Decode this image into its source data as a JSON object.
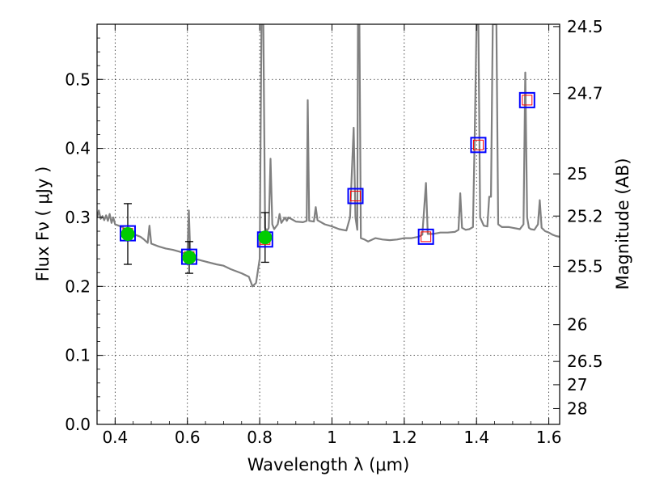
{
  "chart_data": {
    "type": "scatter",
    "title": "",
    "xlabel": "Wavelength  λ (μm)",
    "ylabel": "Flux  Fν  ( μJy )",
    "ylabel_right": "Magnitude (AB)",
    "xlim": [
      0.35,
      1.63
    ],
    "ylim": [
      0.0,
      0.58
    ],
    "grid": true,
    "x_ticks": [
      0.4,
      0.6,
      0.8,
      1.0,
      1.2,
      1.4,
      1.6
    ],
    "x_tick_labels": [
      "0.4",
      "0.6",
      "0.8",
      "1",
      "1.2",
      "1.4",
      "1.6"
    ],
    "y_ticks": [
      0.0,
      0.1,
      0.2,
      0.3,
      0.4,
      0.5
    ],
    "y_tick_labels": [
      "0.0",
      "0.1",
      "0.2",
      "0.3",
      "0.4",
      "0.5"
    ],
    "right_ticks": [
      {
        "flux": 0.5766,
        "label": "24.5"
      },
      {
        "flux": 0.4796,
        "label": "24.7"
      },
      {
        "flux": 0.3631,
        "label": "25"
      },
      {
        "flux": 0.302,
        "label": "25.2"
      },
      {
        "flux": 0.2291,
        "label": "25.5"
      },
      {
        "flux": 0.1445,
        "label": "26"
      },
      {
        "flux": 0.0912,
        "label": "26.5"
      },
      {
        "flux": 0.0575,
        "label": "27"
      },
      {
        "flux": 0.0229,
        "label": "28"
      }
    ],
    "series": [
      {
        "kind": "line",
        "color": "#808080",
        "points": [
          [
            0.35,
            0.3
          ],
          [
            0.355,
            0.31
          ],
          [
            0.36,
            0.298
          ],
          [
            0.365,
            0.302
          ],
          [
            0.37,
            0.296
          ],
          [
            0.375,
            0.303
          ],
          [
            0.38,
            0.295
          ],
          [
            0.385,
            0.305
          ],
          [
            0.39,
            0.292
          ],
          [
            0.395,
            0.3
          ],
          [
            0.4,
            0.29
          ],
          [
            0.41,
            0.288
          ],
          [
            0.42,
            0.286
          ],
          [
            0.43,
            0.282
          ],
          [
            0.44,
            0.279
          ],
          [
            0.45,
            0.276
          ],
          [
            0.46,
            0.274
          ],
          [
            0.47,
            0.272
          ],
          [
            0.48,
            0.268
          ],
          [
            0.49,
            0.263
          ],
          [
            0.495,
            0.288
          ],
          [
            0.5,
            0.262
          ],
          [
            0.52,
            0.258
          ],
          [
            0.54,
            0.255
          ],
          [
            0.56,
            0.253
          ],
          [
            0.58,
            0.25
          ],
          [
            0.6,
            0.246
          ],
          [
            0.604,
            0.31
          ],
          [
            0.608,
            0.246
          ],
          [
            0.62,
            0.24
          ],
          [
            0.65,
            0.236
          ],
          [
            0.68,
            0.232
          ],
          [
            0.7,
            0.23
          ],
          [
            0.72,
            0.225
          ],
          [
            0.75,
            0.219
          ],
          [
            0.77,
            0.214
          ],
          [
            0.78,
            0.2
          ],
          [
            0.79,
            0.205
          ],
          [
            0.8,
            0.24
          ],
          [
            0.805,
            0.58
          ],
          [
            0.81,
            0.58
          ],
          [
            0.815,
            0.285
          ],
          [
            0.82,
            0.28
          ],
          [
            0.825,
            0.285
          ],
          [
            0.83,
            0.385
          ],
          [
            0.835,
            0.29
          ],
          [
            0.84,
            0.283
          ],
          [
            0.85,
            0.29
          ],
          [
            0.855,
            0.305
          ],
          [
            0.86,
            0.292
          ],
          [
            0.87,
            0.3
          ],
          [
            0.875,
            0.295
          ],
          [
            0.88,
            0.3
          ],
          [
            0.9,
            0.294
          ],
          [
            0.92,
            0.293
          ],
          [
            0.93,
            0.295
          ],
          [
            0.933,
            0.47
          ],
          [
            0.937,
            0.295
          ],
          [
            0.95,
            0.294
          ],
          [
            0.955,
            0.315
          ],
          [
            0.96,
            0.296
          ],
          [
            0.98,
            0.29
          ],
          [
            1.0,
            0.287
          ],
          [
            1.02,
            0.283
          ],
          [
            1.04,
            0.281
          ],
          [
            1.05,
            0.3
          ],
          [
            1.06,
            0.43
          ],
          [
            1.065,
            0.3
          ],
          [
            1.07,
            0.282
          ],
          [
            1.072,
            0.58
          ],
          [
            1.076,
            0.58
          ],
          [
            1.08,
            0.27
          ],
          [
            1.09,
            0.268
          ],
          [
            1.1,
            0.265
          ],
          [
            1.12,
            0.27
          ],
          [
            1.14,
            0.268
          ],
          [
            1.16,
            0.267
          ],
          [
            1.18,
            0.268
          ],
          [
            1.2,
            0.27
          ],
          [
            1.22,
            0.27
          ],
          [
            1.24,
            0.272
          ],
          [
            1.25,
            0.275
          ],
          [
            1.26,
            0.35
          ],
          [
            1.265,
            0.276
          ],
          [
            1.28,
            0.276
          ],
          [
            1.3,
            0.278
          ],
          [
            1.32,
            0.278
          ],
          [
            1.34,
            0.279
          ],
          [
            1.35,
            0.282
          ],
          [
            1.355,
            0.335
          ],
          [
            1.36,
            0.285
          ],
          [
            1.37,
            0.282
          ],
          [
            1.38,
            0.283
          ],
          [
            1.39,
            0.286
          ],
          [
            1.395,
            0.42
          ],
          [
            1.4,
            0.58
          ],
          [
            1.405,
            0.58
          ],
          [
            1.41,
            0.3
          ],
          [
            1.42,
            0.288
          ],
          [
            1.43,
            0.287
          ],
          [
            1.435,
            0.33
          ],
          [
            1.44,
            0.33
          ],
          [
            1.445,
            0.58
          ],
          [
            1.455,
            0.58
          ],
          [
            1.46,
            0.29
          ],
          [
            1.47,
            0.286
          ],
          [
            1.49,
            0.286
          ],
          [
            1.5,
            0.285
          ],
          [
            1.52,
            0.283
          ],
          [
            1.53,
            0.29
          ],
          [
            1.535,
            0.51
          ],
          [
            1.54,
            0.3
          ],
          [
            1.545,
            0.285
          ],
          [
            1.55,
            0.283
          ],
          [
            1.56,
            0.282
          ],
          [
            1.57,
            0.29
          ],
          [
            1.575,
            0.325
          ],
          [
            1.58,
            0.285
          ],
          [
            1.59,
            0.28
          ],
          [
            1.6,
            0.278
          ],
          [
            1.61,
            0.275
          ],
          [
            1.62,
            0.273
          ],
          [
            1.63,
            0.272
          ]
        ]
      },
      {
        "kind": "model-squares",
        "outer_color": "#0000ff",
        "inner_color": "#ff0000",
        "points": [
          [
            0.435,
            0.277
          ],
          [
            0.605,
            0.243
          ],
          [
            0.815,
            0.268
          ],
          [
            1.065,
            0.331
          ],
          [
            1.26,
            0.272
          ],
          [
            1.405,
            0.405
          ],
          [
            1.54,
            0.47
          ]
        ]
      },
      {
        "kind": "observed",
        "color": "#00cc00",
        "points": [
          {
            "x": 0.435,
            "y": 0.276,
            "err": 0.044
          },
          {
            "x": 0.605,
            "y": 0.242,
            "err": 0.023
          },
          {
            "x": 0.815,
            "y": 0.271,
            "err": 0.036
          }
        ]
      }
    ]
  }
}
